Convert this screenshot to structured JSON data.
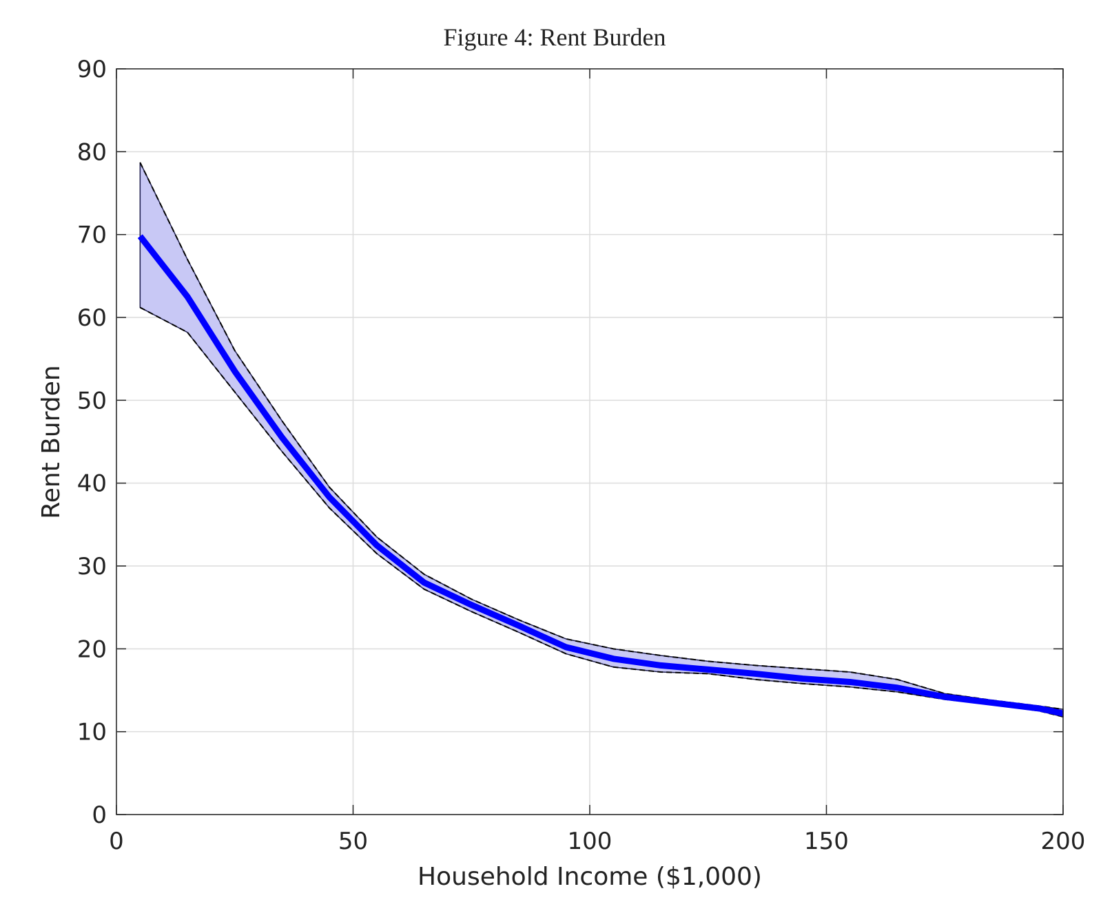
{
  "chart_data": {
    "type": "line",
    "title": "Figure 4: Rent Burden",
    "xlabel": "Household Income ($1,000)",
    "ylabel": "Rent Burden",
    "x": [
      5,
      15,
      25,
      35,
      45,
      55,
      65,
      75,
      85,
      95,
      105,
      115,
      125,
      135,
      145,
      155,
      165,
      175,
      185,
      195,
      200
    ],
    "series": [
      {
        "color": "#0000ff",
        "values": [
          69.8,
          62.5,
          53.5,
          45.5,
          38.3,
          32.5,
          28,
          25.3,
          22.8,
          20.2,
          18.8,
          18,
          17.5,
          17,
          16.4,
          16,
          15.3,
          14.2,
          13.5,
          12.8,
          12.2
        ]
      }
    ],
    "band": {
      "color": "#c8c8f5",
      "upper": [
        78.7,
        67,
        56,
        47.5,
        39.5,
        33.5,
        29,
        26,
        23.5,
        21.2,
        20,
        19.2,
        18.5,
        18,
        17.6,
        17.2,
        16.3,
        14.6,
        13.8,
        13.1,
        12.7
      ],
      "lower": [
        61.2,
        58.2,
        51,
        43.8,
        37,
        31.5,
        27.2,
        24.5,
        22,
        19.4,
        17.8,
        17.2,
        17,
        16.3,
        15.8,
        15.4,
        14.8,
        13.9,
        13.3,
        12.5,
        11.8
      ]
    },
    "xlim": [
      0,
      200
    ],
    "xticks": [
      0,
      50,
      100,
      150,
      200
    ],
    "ylim": [
      0,
      90
    ],
    "yticks": [
      0,
      10,
      20,
      30,
      40,
      50,
      60,
      70,
      80,
      90
    ],
    "grid": true
  }
}
